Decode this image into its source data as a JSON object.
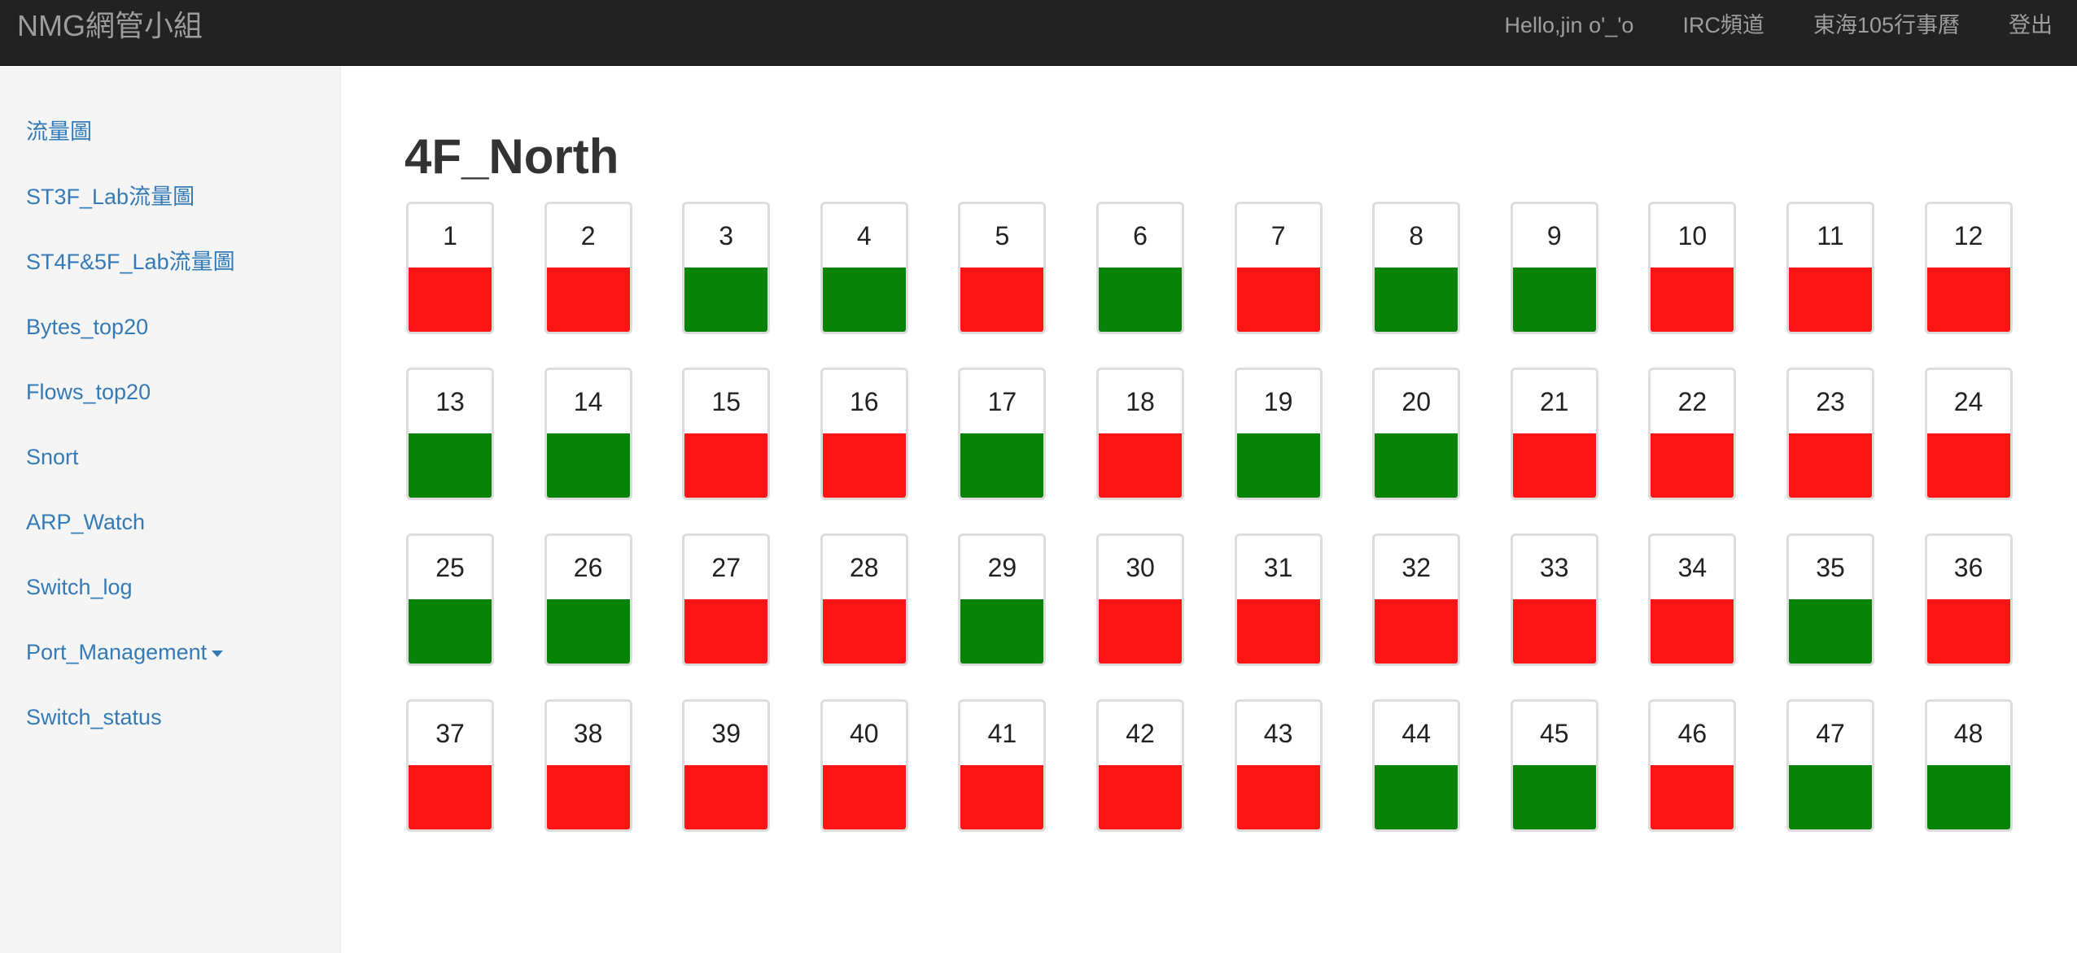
{
  "navbar": {
    "brand": "NMG網管小組",
    "links": [
      "Hello,jin o'_'o",
      "IRC頻道",
      "東海105行事曆",
      "登出"
    ]
  },
  "sidebar": {
    "items": [
      "流量圖",
      "ST3F_Lab流量圖",
      "ST4F&5F_Lab流量圖",
      "Bytes_top20",
      "Flows_top20",
      "Snort",
      "ARP_Watch",
      "Switch_log",
      "Port_Management",
      "Switch_status"
    ],
    "dropdown_item_index": 8
  },
  "main": {
    "title": "4F_North"
  },
  "colors": {
    "up": "#078307",
    "down": "#fd1414"
  },
  "ports": [
    {
      "label": "1",
      "status": "down"
    },
    {
      "label": "2",
      "status": "down"
    },
    {
      "label": "3",
      "status": "up"
    },
    {
      "label": "4",
      "status": "up"
    },
    {
      "label": "5",
      "status": "down"
    },
    {
      "label": "6",
      "status": "up"
    },
    {
      "label": "7",
      "status": "down"
    },
    {
      "label": "8",
      "status": "up"
    },
    {
      "label": "9",
      "status": "up"
    },
    {
      "label": "10",
      "status": "down"
    },
    {
      "label": "11",
      "status": "down"
    },
    {
      "label": "12",
      "status": "down"
    },
    {
      "label": "13",
      "status": "up"
    },
    {
      "label": "14",
      "status": "up"
    },
    {
      "label": "15",
      "status": "down"
    },
    {
      "label": "16",
      "status": "down"
    },
    {
      "label": "17",
      "status": "up"
    },
    {
      "label": "18",
      "status": "down"
    },
    {
      "label": "19",
      "status": "up"
    },
    {
      "label": "20",
      "status": "up"
    },
    {
      "label": "21",
      "status": "down"
    },
    {
      "label": "22",
      "status": "down"
    },
    {
      "label": "23",
      "status": "down"
    },
    {
      "label": "24",
      "status": "down"
    },
    {
      "label": "25",
      "status": "up"
    },
    {
      "label": "26",
      "status": "up"
    },
    {
      "label": "27",
      "status": "down"
    },
    {
      "label": "28",
      "status": "down"
    },
    {
      "label": "29",
      "status": "up"
    },
    {
      "label": "30",
      "status": "down"
    },
    {
      "label": "31",
      "status": "down"
    },
    {
      "label": "32",
      "status": "down"
    },
    {
      "label": "33",
      "status": "down"
    },
    {
      "label": "34",
      "status": "down"
    },
    {
      "label": "35",
      "status": "up"
    },
    {
      "label": "36",
      "status": "down"
    },
    {
      "label": "37",
      "status": "down"
    },
    {
      "label": "38",
      "status": "down"
    },
    {
      "label": "39",
      "status": "down"
    },
    {
      "label": "40",
      "status": "down"
    },
    {
      "label": "41",
      "status": "down"
    },
    {
      "label": "42",
      "status": "down"
    },
    {
      "label": "43",
      "status": "down"
    },
    {
      "label": "44",
      "status": "up"
    },
    {
      "label": "45",
      "status": "up"
    },
    {
      "label": "46",
      "status": "down"
    },
    {
      "label": "47",
      "status": "up"
    },
    {
      "label": "48",
      "status": "up"
    }
  ]
}
